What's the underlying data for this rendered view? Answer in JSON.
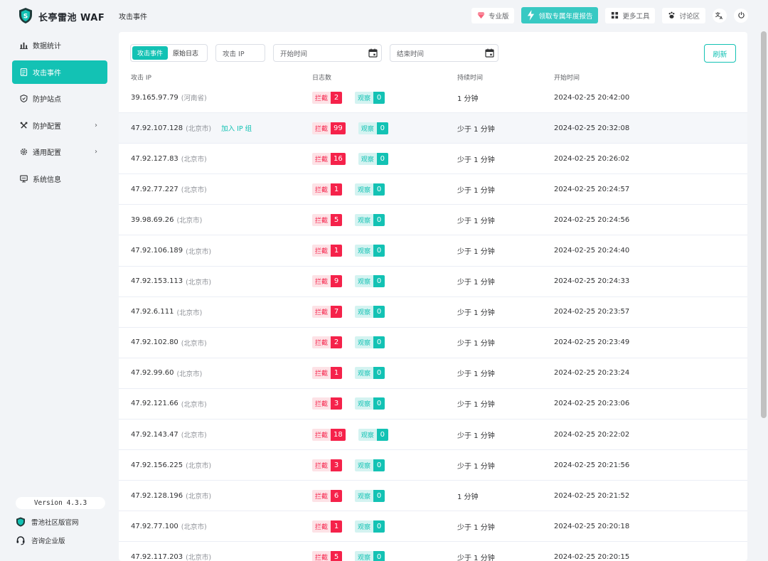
{
  "app": {
    "name": "长亭雷池 WAF"
  },
  "sidebar": {
    "items": [
      {
        "label": "数据统计",
        "icon": "bar-chart-icon",
        "active": false,
        "has_arrow": false
      },
      {
        "label": "攻击事件",
        "icon": "document-icon",
        "active": true,
        "has_arrow": false
      },
      {
        "label": "防护站点",
        "icon": "shield-icon",
        "active": false,
        "has_arrow": false
      },
      {
        "label": "防护配置",
        "icon": "tools-icon",
        "active": false,
        "has_arrow": true
      },
      {
        "label": "通用配置",
        "icon": "gear-icon",
        "active": false,
        "has_arrow": true
      },
      {
        "label": "系统信息",
        "icon": "monitor-icon",
        "active": false,
        "has_arrow": false
      }
    ],
    "version": "Version 4.3.3",
    "community_link": "雷池社区版官网",
    "enterprise_link": "咨询企业版"
  },
  "header": {
    "title": "攻击事件",
    "pro_label": "专业版",
    "promo_label": "领取专属年度报告",
    "tools_label": "更多工具",
    "forum_label": "讨论区",
    "lang_icon": "language-icon",
    "logout_icon": "logout-icon"
  },
  "filters": {
    "tab_events": "攻击事件",
    "tab_raw": "原始日志",
    "ip_placeholder": "攻击 IP",
    "start_placeholder": "开始时间",
    "end_placeholder": "结束时间",
    "refresh_label": "刷新"
  },
  "table": {
    "columns": [
      "攻击 IP",
      "日志数",
      "持续时间",
      "开始时间"
    ],
    "block_label": "拦截",
    "watch_label": "观察",
    "add_group_label": "加入 IP 组",
    "rows": [
      {
        "ip": "39.165.97.79",
        "loc": "(河南省)",
        "block": "2",
        "watch": "0",
        "duration": "1 分钟",
        "start": "2024-02-25 20:42:00"
      },
      {
        "ip": "47.92.107.128",
        "loc": "(北京市)",
        "block": "99",
        "watch": "0",
        "duration": "少于 1 分钟",
        "start": "2024-02-25 20:32:08",
        "hover": true
      },
      {
        "ip": "47.92.127.83",
        "loc": "(北京市)",
        "block": "16",
        "watch": "0",
        "duration": "少于 1 分钟",
        "start": "2024-02-25 20:26:02"
      },
      {
        "ip": "47.92.77.227",
        "loc": "(北京市)",
        "block": "1",
        "watch": "0",
        "duration": "少于 1 分钟",
        "start": "2024-02-25 20:24:57"
      },
      {
        "ip": "39.98.69.26",
        "loc": "(北京市)",
        "block": "5",
        "watch": "0",
        "duration": "少于 1 分钟",
        "start": "2024-02-25 20:24:56"
      },
      {
        "ip": "47.92.106.189",
        "loc": "(北京市)",
        "block": "1",
        "watch": "0",
        "duration": "少于 1 分钟",
        "start": "2024-02-25 20:24:40"
      },
      {
        "ip": "47.92.153.113",
        "loc": "(北京市)",
        "block": "9",
        "watch": "0",
        "duration": "少于 1 分钟",
        "start": "2024-02-25 20:24:33"
      },
      {
        "ip": "47.92.6.111",
        "loc": "(北京市)",
        "block": "7",
        "watch": "0",
        "duration": "少于 1 分钟",
        "start": "2024-02-25 20:23:57"
      },
      {
        "ip": "47.92.102.80",
        "loc": "(北京市)",
        "block": "2",
        "watch": "0",
        "duration": "少于 1 分钟",
        "start": "2024-02-25 20:23:49"
      },
      {
        "ip": "47.92.99.60",
        "loc": "(北京市)",
        "block": "1",
        "watch": "0",
        "duration": "少于 1 分钟",
        "start": "2024-02-25 20:23:24"
      },
      {
        "ip": "47.92.121.66",
        "loc": "(北京市)",
        "block": "3",
        "watch": "0",
        "duration": "少于 1 分钟",
        "start": "2024-02-25 20:23:06"
      },
      {
        "ip": "47.92.143.47",
        "loc": "(北京市)",
        "block": "18",
        "watch": "0",
        "duration": "少于 1 分钟",
        "start": "2024-02-25 20:22:02"
      },
      {
        "ip": "47.92.156.225",
        "loc": "(北京市)",
        "block": "3",
        "watch": "0",
        "duration": "少于 1 分钟",
        "start": "2024-02-25 20:21:56"
      },
      {
        "ip": "47.92.128.196",
        "loc": "(北京市)",
        "block": "6",
        "watch": "0",
        "duration": "1 分钟",
        "start": "2024-02-25 20:21:52"
      },
      {
        "ip": "47.92.77.100",
        "loc": "(北京市)",
        "block": "1",
        "watch": "0",
        "duration": "少于 1 分钟",
        "start": "2024-02-25 20:20:18"
      },
      {
        "ip": "47.92.117.203",
        "loc": "(北京市)",
        "block": "5",
        "watch": "0",
        "duration": "少于 1 分钟",
        "start": "2024-02-25 20:20:15"
      }
    ]
  },
  "colors": {
    "accent": "#13c2b4",
    "danger": "#f5224a"
  }
}
